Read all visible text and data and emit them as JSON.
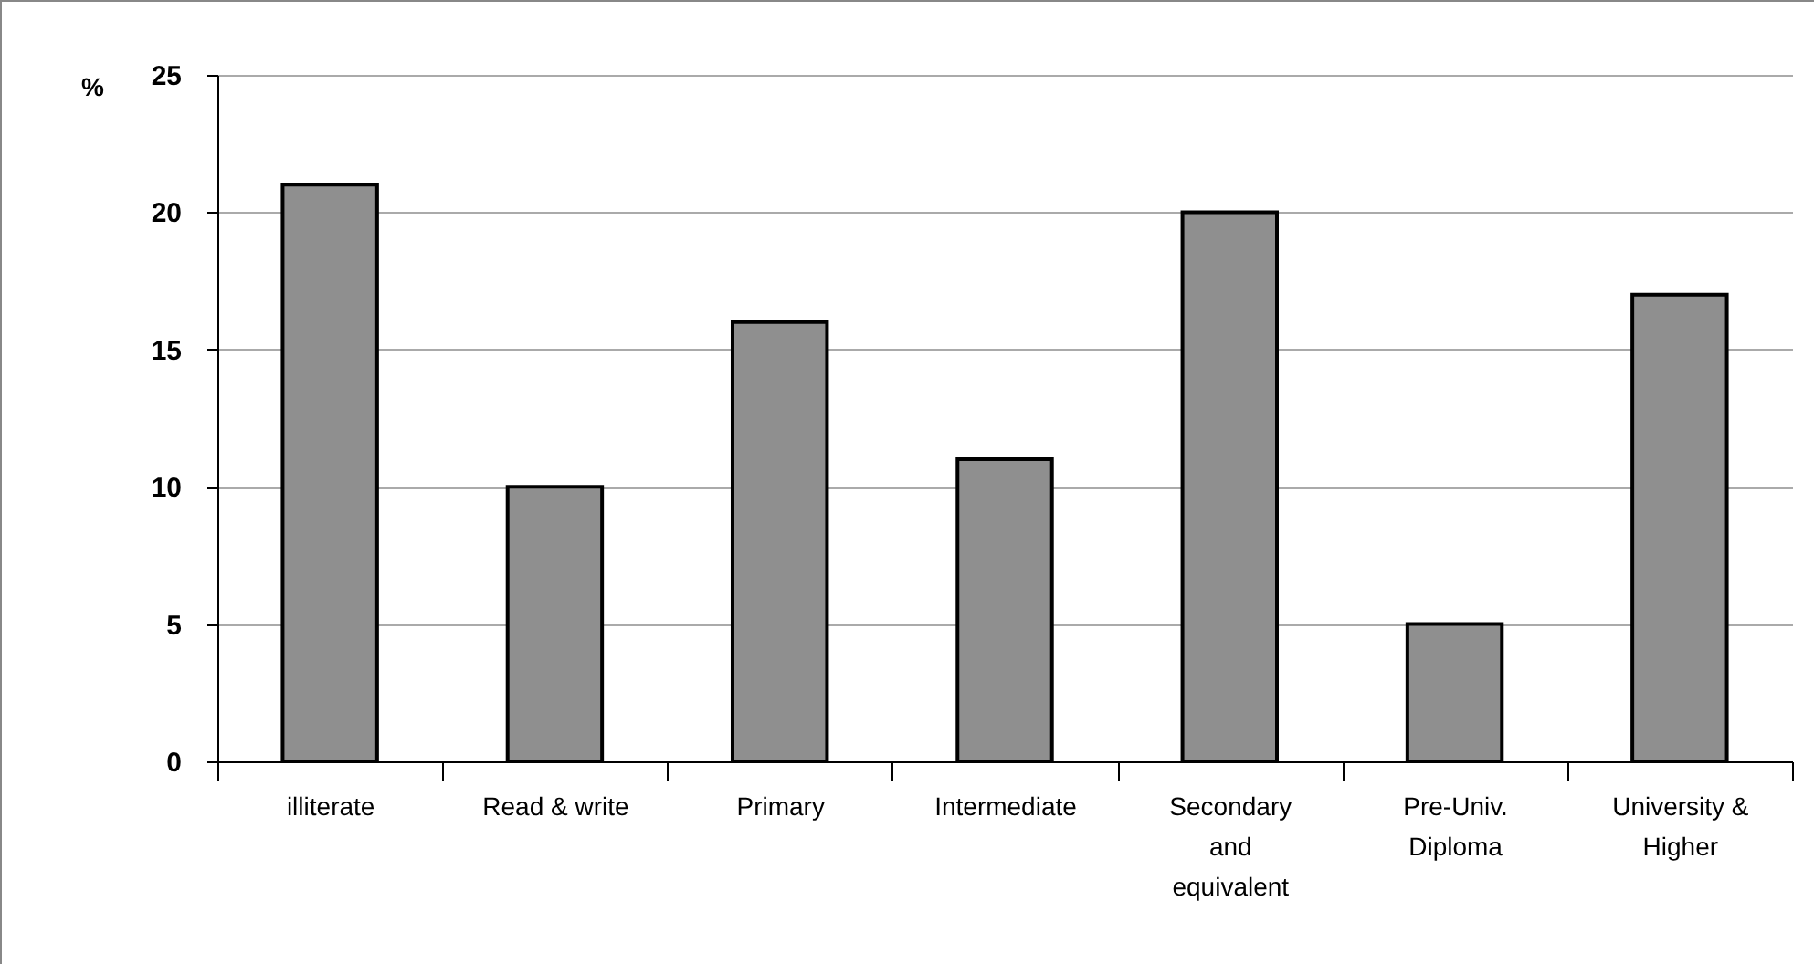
{
  "chart_data": {
    "type": "bar",
    "ylabel": "%",
    "categories": [
      "illiterate",
      "Read & write",
      "Primary",
      "Intermediate",
      "Secondary and equivalent",
      "Pre-Univ. Diploma",
      "University & Higher"
    ],
    "values": [
      21,
      10,
      16,
      11,
      20,
      5,
      17
    ],
    "color": "#8f8f8f",
    "ylim": [
      0,
      25
    ],
    "yticks": [
      0,
      5,
      10,
      15,
      20,
      25
    ],
    "grid": "y"
  }
}
